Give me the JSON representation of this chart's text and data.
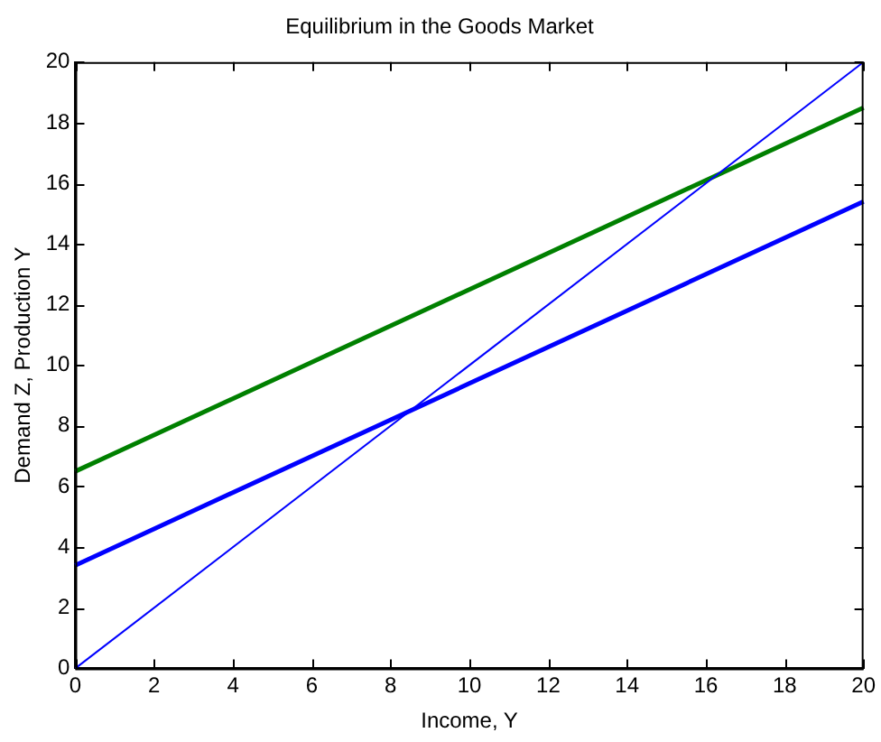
{
  "chart_data": {
    "type": "line",
    "title": "Equilibrium in the Goods Market",
    "xlabel": "Income, Y",
    "ylabel": "Demand Z, Production Y",
    "xlim": [
      0,
      20
    ],
    "xticks": [
      0,
      2,
      4,
      6,
      8,
      10,
      12,
      14,
      16,
      18,
      20
    ],
    "ylim": [
      0,
      20
    ],
    "yticks": [
      0,
      2,
      4,
      6,
      8,
      10,
      12,
      14,
      16,
      18,
      20
    ],
    "grid": false,
    "marker": "none",
    "line_style": "solid",
    "x": [
      0,
      20
    ],
    "series": [
      {
        "color": "#0000ff",
        "values": [
          0,
          20
        ]
      },
      {
        "color": "#008000",
        "values": [
          6.5,
          18.5
        ]
      },
      {
        "color": "#0000ff",
        "values": [
          3.4,
          15.4
        ]
      }
    ]
  }
}
